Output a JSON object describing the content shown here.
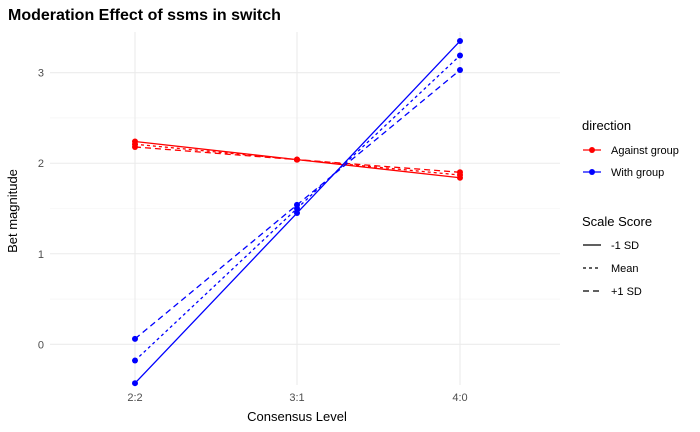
{
  "chart_data": {
    "type": "line",
    "title": "Moderation Effect of ssms in switch",
    "xlabel": "Consensus Level",
    "ylabel": "Bet magnitude",
    "categories": [
      "2:2",
      "3:1",
      "4:0"
    ],
    "ylim": [
      -0.45,
      3.45
    ],
    "yticks": [
      0,
      1,
      2,
      3
    ],
    "grid": true,
    "legend_placement": "right",
    "color_legend": {
      "title": "direction",
      "items": [
        {
          "label": "Against group",
          "color": "#ff0000"
        },
        {
          "label": "With group",
          "color": "#0000ff"
        }
      ]
    },
    "linetype_legend": {
      "title": "Scale Score",
      "items": [
        {
          "label": "-1 SD",
          "dash": "solid"
        },
        {
          "label": "Mean",
          "dash": "dotted"
        },
        {
          "label": "+1 SD",
          "dash": "dashed"
        }
      ]
    },
    "series": [
      {
        "direction": "Against group",
        "scale": "-1 SD",
        "values": [
          2.24,
          2.04,
          1.84
        ]
      },
      {
        "direction": "Against group",
        "scale": "Mean",
        "values": [
          2.21,
          2.04,
          1.87
        ]
      },
      {
        "direction": "Against group",
        "scale": "+1 SD",
        "values": [
          2.18,
          2.04,
          1.9
        ]
      },
      {
        "direction": "With group",
        "scale": "-1 SD",
        "values": [
          -0.43,
          1.45,
          3.35
        ]
      },
      {
        "direction": "With group",
        "scale": "Mean",
        "values": [
          -0.18,
          1.5,
          3.19
        ]
      },
      {
        "direction": "With group",
        "scale": "+1 SD",
        "values": [
          0.06,
          1.54,
          3.03
        ]
      }
    ]
  }
}
